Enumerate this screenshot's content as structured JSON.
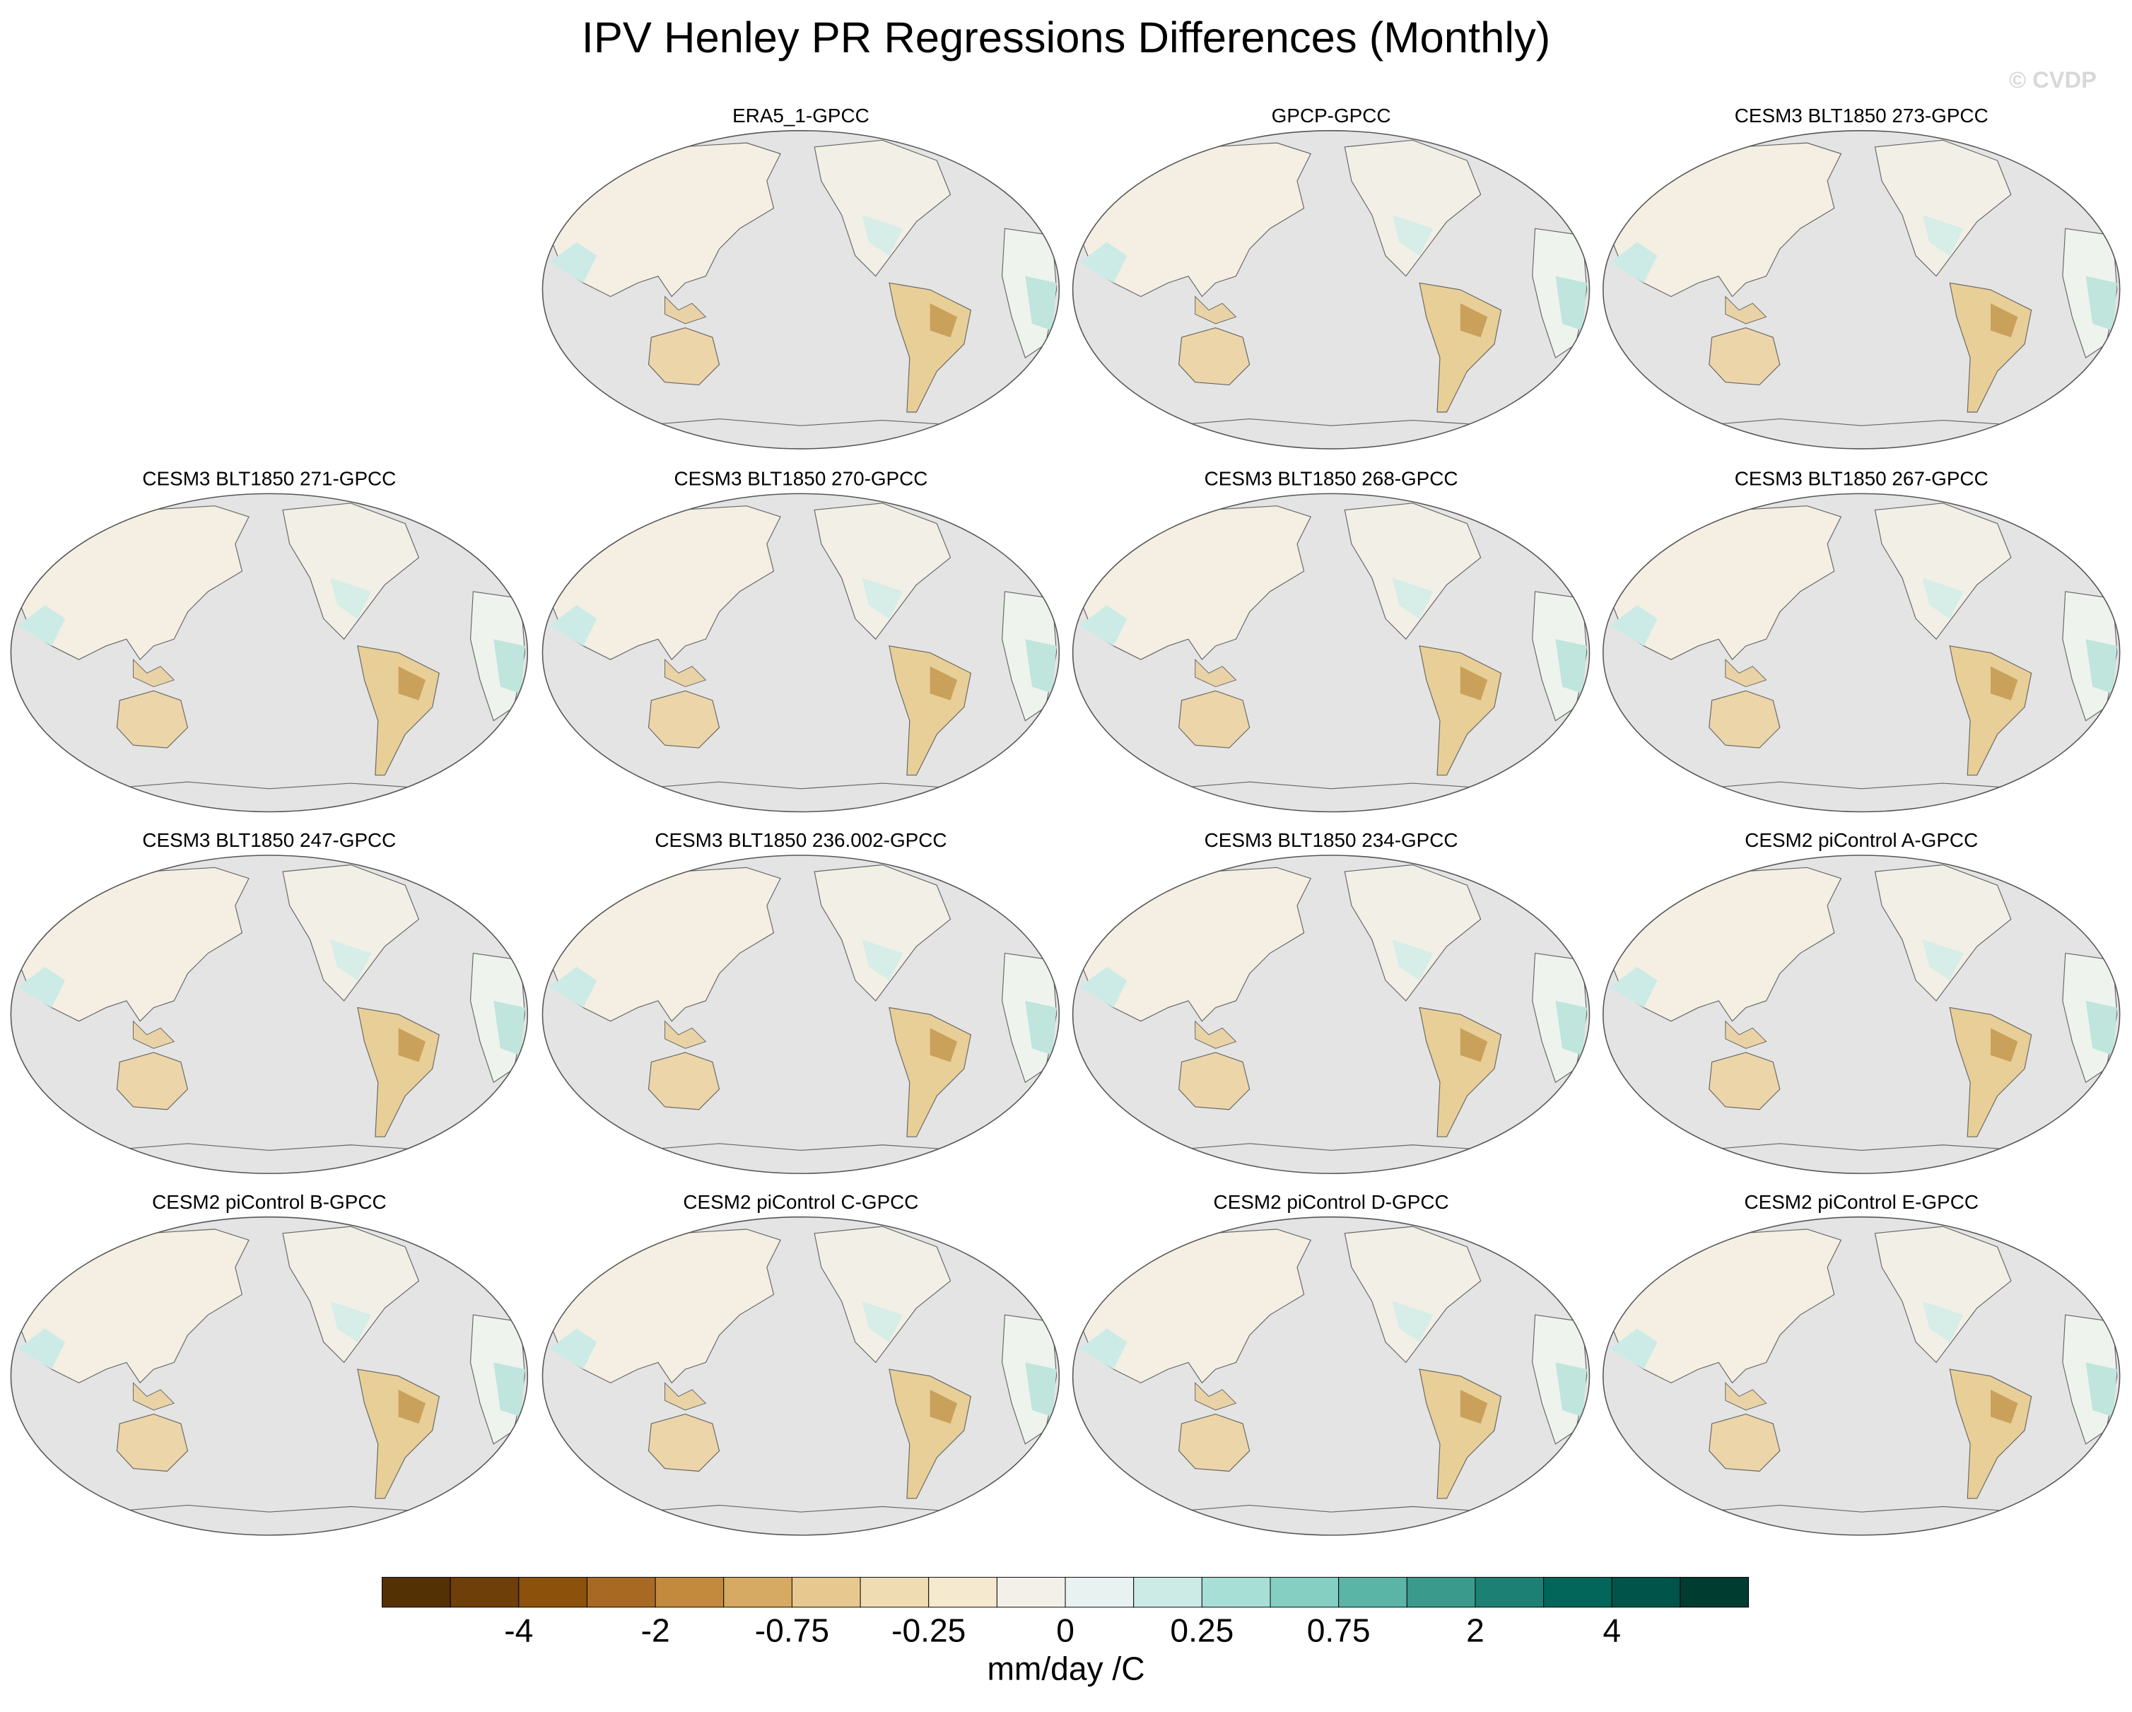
{
  "title": "IPV Henley PR Regressions Differences (Monthly)",
  "watermark": "© CVDP",
  "panels": [
    {
      "title": "ERA5_1-GPCC"
    },
    {
      "title": "GPCP-GPCC"
    },
    {
      "title": "CESM3 BLT1850 273-GPCC"
    },
    {
      "title": "CESM3 BLT1850 271-GPCC"
    },
    {
      "title": "CESM3 BLT1850 270-GPCC"
    },
    {
      "title": "CESM3 BLT1850 268-GPCC"
    },
    {
      "title": "CESM3 BLT1850 267-GPCC"
    },
    {
      "title": "CESM3 BLT1850 247-GPCC"
    },
    {
      "title": "CESM3 BLT1850 236.002-GPCC"
    },
    {
      "title": "CESM3 BLT1850 234-GPCC"
    },
    {
      "title": "CESM2 piControl A-GPCC"
    },
    {
      "title": "CESM2 piControl B-GPCC"
    },
    {
      "title": "CESM2 piControl C-GPCC"
    },
    {
      "title": "CESM2 piControl D-GPCC"
    },
    {
      "title": "CESM2 piControl E-GPCC"
    }
  ],
  "colorbar": {
    "colors": [
      "#543005",
      "#6f3f0a",
      "#8c510a",
      "#a86a23",
      "#c38a3e",
      "#d6aa62",
      "#e7c88f",
      "#f0dcb2",
      "#f5ead0",
      "#f3f0ea",
      "#e8f2f0",
      "#cdebe6",
      "#a7dfd6",
      "#85cfc2",
      "#5ab5a6",
      "#3a9a8c",
      "#1c8174",
      "#02665a",
      "#01544a",
      "#003c30"
    ],
    "labels": [
      -4,
      -2,
      -0.75,
      -0.25,
      0,
      0.25,
      0.75,
      2,
      4
    ],
    "unit": "mm/day /C"
  }
}
